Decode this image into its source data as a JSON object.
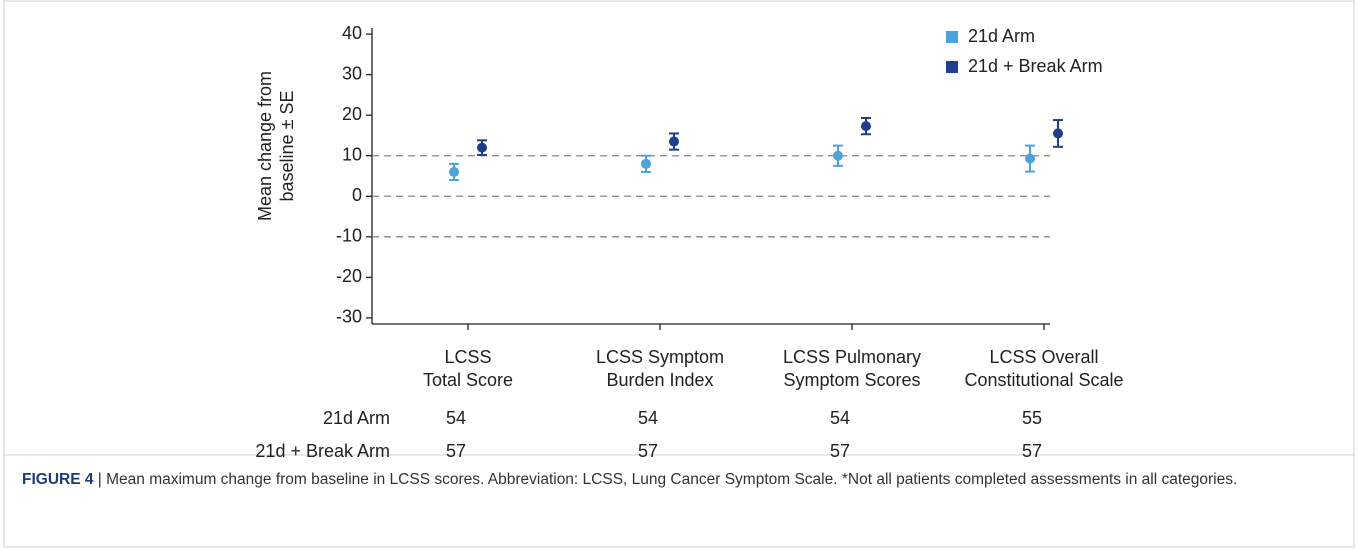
{
  "chart_data": {
    "type": "errorbar",
    "y_label": [
      "Mean change from",
      "baseline ± SE"
    ],
    "categories": [
      [
        "LCSS",
        "Total Score"
      ],
      [
        "LCSS Symptom",
        "Burden Index"
      ],
      [
        "LCSS Pulmonary",
        "Symptom Scores"
      ],
      [
        "LCSS Overall",
        "Constitutional Scale"
      ]
    ],
    "series": [
      {
        "name": "21d Arm",
        "color": "#4ca3da",
        "values": [
          6,
          8,
          10,
          9.3
        ],
        "errors": [
          2,
          2,
          2.5,
          3.2
        ],
        "n": [
          54,
          54,
          54,
          55
        ]
      },
      {
        "name": "21d + Break Arm",
        "color": "#1f3d8c",
        "values": [
          12,
          13.5,
          17.3,
          15.5
        ],
        "errors": [
          1.8,
          2,
          2,
          3.3
        ],
        "n": [
          57,
          57,
          57,
          57
        ]
      }
    ],
    "ylim": [
      -31.5,
      41.5
    ],
    "yticks": [
      40,
      30,
      20,
      10,
      0,
      -10,
      -20,
      -30
    ],
    "reference_lines": [
      10,
      0,
      -10
    ],
    "legend": "top-right",
    "caption": {
      "label": "FIGURE 4",
      "text": " | Mean maximum change from baseline in LCSS scores. Abbreviation: LCSS, Lung Cancer Symptom Scale. *Not all patients completed assessments in all categories."
    }
  }
}
